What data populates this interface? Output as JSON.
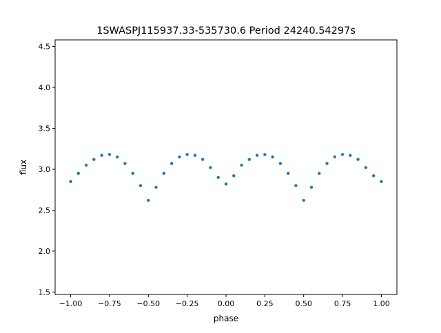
{
  "chart_data": {
    "type": "scatter",
    "title": "1SWASPJ115937.33-535730.6 Period 24240.54297s",
    "xlabel": "phase",
    "ylabel": "flux",
    "xlim": [
      -1.1,
      1.1
    ],
    "ylim": [
      1.47,
      4.58
    ],
    "xticks": [
      -1.0,
      -0.75,
      -0.5,
      -0.25,
      0.0,
      0.25,
      0.5,
      0.75,
      1.0
    ],
    "xtick_labels": [
      "−1.00",
      "−0.75",
      "−0.50",
      "−0.25",
      "0.00",
      "0.25",
      "0.50",
      "0.75",
      "1.00"
    ],
    "yticks": [
      1.5,
      2.0,
      2.5,
      3.0,
      3.5,
      4.0,
      4.5
    ],
    "ytick_labels": [
      "1.5",
      "2.0",
      "2.5",
      "3.0",
      "3.5",
      "4.0",
      "4.5"
    ],
    "grid": false,
    "legend": "none",
    "point_color": "#1f77b4",
    "series": [
      {
        "x": [
          -1.0,
          -0.95,
          -0.9,
          -0.85,
          -0.8,
          -0.75,
          -0.7,
          -0.65,
          -0.6,
          -0.55,
          -0.5,
          -0.45,
          -0.4,
          -0.35,
          -0.3,
          -0.25,
          -0.2,
          -0.15,
          -0.1,
          -0.05,
          0.0,
          0.05,
          0.1,
          0.15,
          0.2,
          0.25,
          0.3,
          0.35,
          0.4,
          0.45,
          0.5,
          0.55,
          0.6,
          0.65,
          0.7,
          0.75,
          0.8,
          0.85,
          0.9,
          0.95,
          1.0
        ],
        "y": [
          2.85,
          2.95,
          3.05,
          3.12,
          3.17,
          3.18,
          3.15,
          3.07,
          2.95,
          2.8,
          2.62,
          2.78,
          2.95,
          3.07,
          3.15,
          3.18,
          3.17,
          3.12,
          3.02,
          2.9,
          2.82,
          2.92,
          3.05,
          3.12,
          3.17,
          3.18,
          3.15,
          3.07,
          2.95,
          2.8,
          2.62,
          2.78,
          2.95,
          3.07,
          3.15,
          3.18,
          3.17,
          3.12,
          3.02,
          2.92,
          2.85
        ]
      }
    ]
  }
}
